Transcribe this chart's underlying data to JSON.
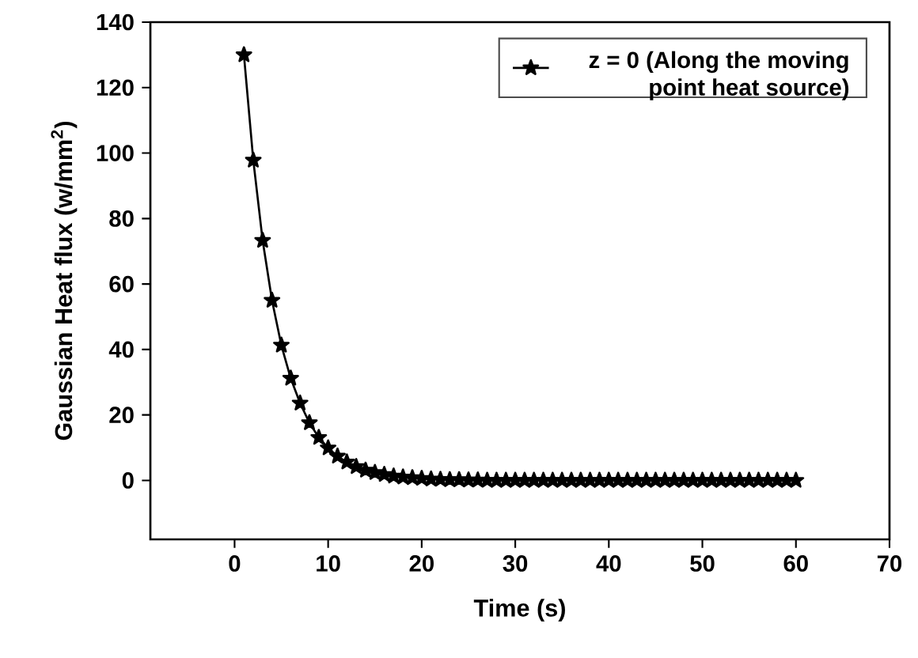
{
  "chart_data": {
    "type": "line",
    "xlabel": "Time (s)",
    "ylabel": "Gaussian Heat flux (w/mm$^{2}$)",
    "x": [
      1,
      2,
      3,
      4,
      5,
      6,
      7,
      8,
      9,
      10,
      11,
      12,
      13,
      14,
      15,
      16,
      17,
      18,
      19,
      20,
      21,
      22,
      23,
      24,
      25,
      26,
      27,
      28,
      29,
      30,
      31,
      32,
      33,
      34,
      35,
      36,
      37,
      38,
      39,
      40,
      41,
      42,
      43,
      44,
      45,
      46,
      47,
      48,
      49,
      50,
      51,
      52,
      53,
      54,
      55,
      56,
      57,
      58,
      59,
      60
    ],
    "series": [
      {
        "name": "z = 0 (Along the moving point heat source)",
        "color": "#000000",
        "values": [
          130,
          97.8,
          73.3,
          55,
          41.3,
          31.2,
          23.6,
          17.6,
          13.1,
          9.9,
          7.4,
          5.6,
          4.2,
          3.1,
          2.4,
          1.8,
          1.3,
          1,
          0.8,
          0.6,
          0.4,
          0.3,
          0.2,
          0.2,
          0.1,
          0.1,
          0,
          0,
          0,
          0,
          0,
          0,
          0,
          0,
          0,
          0,
          0,
          0,
          0,
          0,
          0,
          0,
          0,
          0,
          0,
          0,
          0,
          0,
          0,
          0,
          0,
          0,
          0,
          0,
          0,
          0,
          0,
          0,
          0,
          0
        ]
      }
    ],
    "xlim": [
      -9,
      70
    ],
    "ylim": [
      -18,
      140
    ],
    "xticks": [
      0,
      10,
      20,
      30,
      40,
      50,
      60,
      70
    ],
    "yticks": [
      0,
      20,
      40,
      60,
      80,
      100,
      120,
      140
    ],
    "grid": false,
    "legend": "top right",
    "marker": "star",
    "line_style": "solid"
  }
}
